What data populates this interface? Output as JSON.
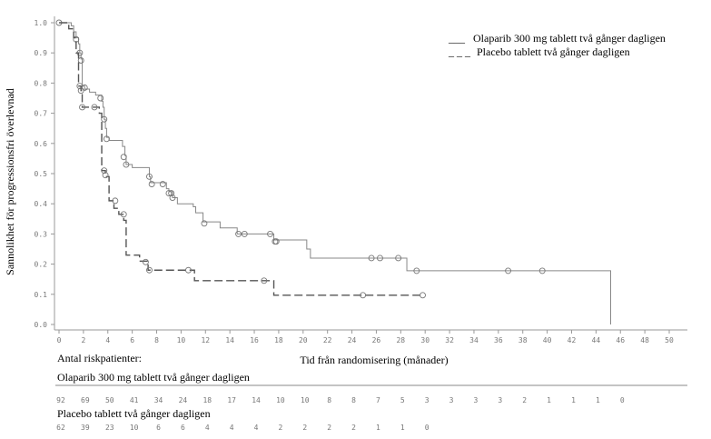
{
  "chart_data": {
    "type": "line",
    "subtype": "kaplan-meier",
    "ylabel": "Sannolikhet för progressionsfri överlevnad",
    "xlabel": "Tid från randomisering (månader)",
    "xlim": [
      0,
      50
    ],
    "ylim": [
      0,
      1
    ],
    "xticks": [
      0,
      2,
      4,
      6,
      8,
      10,
      12,
      14,
      16,
      18,
      20,
      22,
      24,
      26,
      28,
      30,
      32,
      34,
      36,
      38,
      40,
      42,
      44,
      46,
      48,
      50
    ],
    "yticks": [
      "0.0",
      "0.1",
      "0.2",
      "0.3",
      "0.4",
      "0.5",
      "0.6",
      "0.7",
      "0.8",
      "0.9",
      "1.0"
    ],
    "legend_position": "top-right",
    "grid": false,
    "series": [
      {
        "name": "Olaparib 300 mg tablett två gånger dagligen",
        "legend_mark": "___",
        "style": "solid",
        "color": "#888888",
        "steps": [
          [
            0,
            1.0
          ],
          [
            1.0,
            0.99
          ],
          [
            1.2,
            0.97
          ],
          [
            1.4,
            0.95
          ],
          [
            1.6,
            0.93
          ],
          [
            1.7,
            0.9
          ],
          [
            1.8,
            0.88
          ],
          [
            1.9,
            0.79
          ],
          [
            2.1,
            0.78
          ],
          [
            2.5,
            0.77
          ],
          [
            3.0,
            0.76
          ],
          [
            3.5,
            0.74
          ],
          [
            3.6,
            0.72
          ],
          [
            3.7,
            0.68
          ],
          [
            3.8,
            0.65
          ],
          [
            3.9,
            0.62
          ],
          [
            4.1,
            0.61
          ],
          [
            5.2,
            0.59
          ],
          [
            5.4,
            0.56
          ],
          [
            5.5,
            0.53
          ],
          [
            6.0,
            0.52
          ],
          [
            7.4,
            0.49
          ],
          [
            7.5,
            0.47
          ],
          [
            8.8,
            0.45
          ],
          [
            9.0,
            0.44
          ],
          [
            9.3,
            0.42
          ],
          [
            9.7,
            0.4
          ],
          [
            11.0,
            0.39
          ],
          [
            11.2,
            0.37
          ],
          [
            11.8,
            0.34
          ],
          [
            13.2,
            0.32
          ],
          [
            14.6,
            0.3
          ],
          [
            17.6,
            0.28
          ],
          [
            20.3,
            0.25
          ],
          [
            20.6,
            0.22
          ],
          [
            28.5,
            0.178
          ],
          [
            45.2,
            0.178
          ],
          [
            45.2,
            0.0
          ]
        ],
        "censored": [
          [
            0,
            1.0
          ],
          [
            1.4,
            0.945
          ],
          [
            1.7,
            0.9
          ],
          [
            1.8,
            0.875
          ],
          [
            1.7,
            0.79
          ],
          [
            2.1,
            0.785
          ],
          [
            3.4,
            0.75
          ],
          [
            3.7,
            0.68
          ],
          [
            3.9,
            0.615
          ],
          [
            5.3,
            0.555
          ],
          [
            5.5,
            0.53
          ],
          [
            7.4,
            0.49
          ],
          [
            7.6,
            0.465
          ],
          [
            8.5,
            0.465
          ],
          [
            9.0,
            0.435
          ],
          [
            9.2,
            0.435
          ],
          [
            9.3,
            0.42
          ],
          [
            11.9,
            0.335
          ],
          [
            14.7,
            0.3
          ],
          [
            15.2,
            0.3
          ],
          [
            17.3,
            0.3
          ],
          [
            17.7,
            0.275
          ],
          [
            17.8,
            0.275
          ],
          [
            25.6,
            0.22
          ],
          [
            26.3,
            0.22
          ],
          [
            27.8,
            0.22
          ],
          [
            29.3,
            0.178
          ],
          [
            36.8,
            0.178
          ],
          [
            39.6,
            0.178
          ]
        ],
        "at_risk": [
          92,
          69,
          50,
          41,
          34,
          24,
          18,
          17,
          14,
          10,
          10,
          8,
          8,
          7,
          5,
          3,
          3,
          3,
          3,
          2,
          1,
          1,
          1,
          0
        ]
      },
      {
        "name": "Placebo tablett två gånger dagligen",
        "legend_mark": "_ _ _",
        "style": "dashed",
        "color": "#555555",
        "steps": [
          [
            0,
            1.0
          ],
          [
            0.8,
            0.98
          ],
          [
            1.2,
            0.95
          ],
          [
            1.4,
            0.9
          ],
          [
            1.6,
            0.79
          ],
          [
            1.8,
            0.775
          ],
          [
            1.9,
            0.72
          ],
          [
            3.3,
            0.7
          ],
          [
            3.5,
            0.51
          ],
          [
            3.8,
            0.49
          ],
          [
            4.1,
            0.41
          ],
          [
            4.5,
            0.385
          ],
          [
            4.9,
            0.365
          ],
          [
            5.3,
            0.345
          ],
          [
            5.5,
            0.23
          ],
          [
            6.6,
            0.21
          ],
          [
            7.3,
            0.18
          ],
          [
            11.1,
            0.145
          ],
          [
            17.6,
            0.097
          ],
          [
            29.8,
            0.097
          ]
        ],
        "censored": [
          [
            1.8,
            0.775
          ],
          [
            1.9,
            0.72
          ],
          [
            2.9,
            0.72
          ],
          [
            3.7,
            0.51
          ],
          [
            3.8,
            0.495
          ],
          [
            4.6,
            0.41
          ],
          [
            5.3,
            0.365
          ],
          [
            7.1,
            0.207
          ],
          [
            7.4,
            0.18
          ],
          [
            10.6,
            0.18
          ],
          [
            16.8,
            0.145
          ],
          [
            24.9,
            0.097
          ],
          [
            29.8,
            0.097
          ]
        ],
        "at_risk": [
          62,
          39,
          23,
          10,
          6,
          6,
          4,
          4,
          4,
          2,
          2,
          2,
          2,
          1,
          1,
          0
        ]
      }
    ],
    "risk_table": {
      "title": "Antal riskpatienter:",
      "interval_months": 2
    }
  }
}
